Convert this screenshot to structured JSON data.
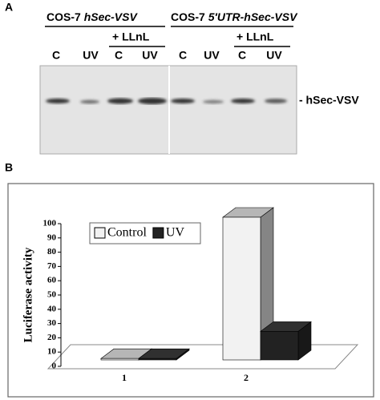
{
  "panel_a": {
    "label": "A",
    "groups": [
      {
        "cell": "COS-7",
        "construct": "hSec-VSV",
        "treatment": "+ LLnL"
      },
      {
        "cell": "COS-7",
        "construct": "5′UTR-hSec-VSV",
        "treatment": "+ LLnL"
      }
    ],
    "lanes": [
      "C",
      "UV",
      "C",
      "UV",
      "C",
      "UV",
      "C",
      "UV"
    ],
    "band_label": "- hSec-VSV"
  },
  "panel_b_label": "B",
  "chart_data": {
    "type": "bar3d",
    "ylabel": "Luciferase activity",
    "categories": [
      "1",
      "2"
    ],
    "series": [
      {
        "name": "Control",
        "color": "#f2f2f2",
        "values": [
          1,
          100
        ]
      },
      {
        "name": "UV",
        "color": "#222222",
        "values": [
          1,
          20
        ]
      }
    ],
    "ylim": [
      0,
      100
    ],
    "yticks": [
      0,
      10,
      20,
      30,
      40,
      50,
      60,
      70,
      80,
      90,
      100
    ],
    "grid": false
  }
}
